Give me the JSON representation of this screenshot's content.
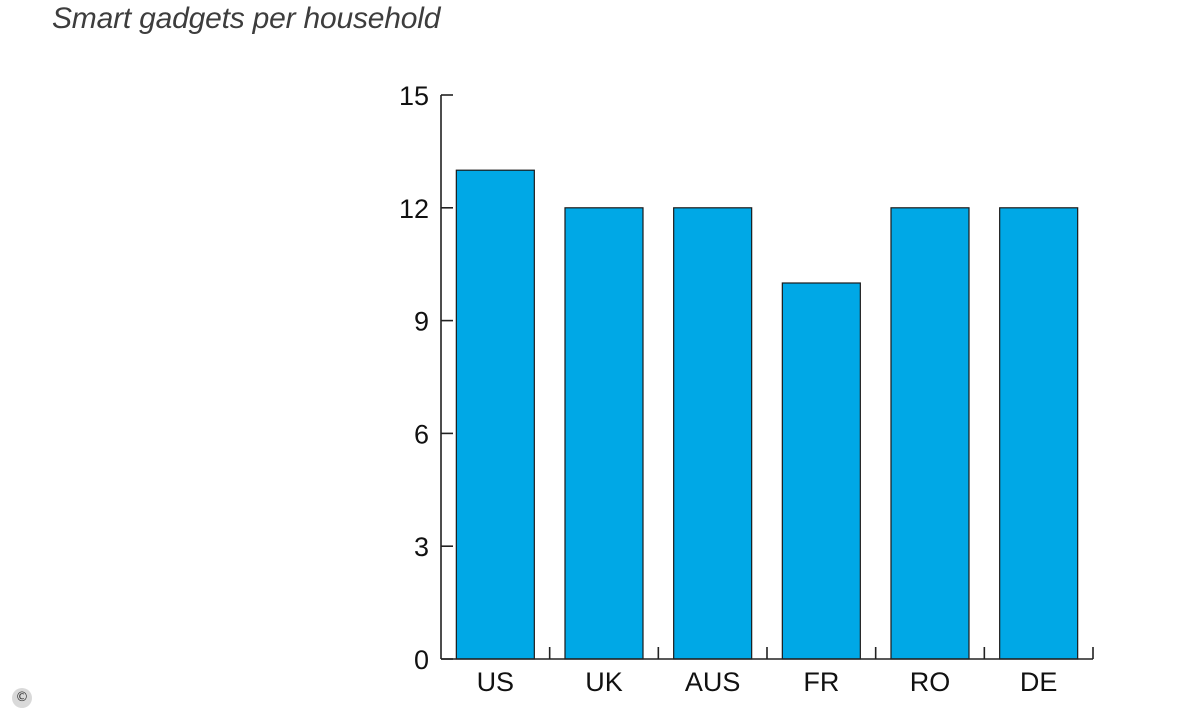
{
  "chart_data": {
    "type": "bar",
    "title": "Smart gadgets per household",
    "xlabel": "",
    "ylabel": "",
    "categories": [
      "US",
      "UK",
      "AUS",
      "FR",
      "RO",
      "DE"
    ],
    "values": [
      13,
      12,
      12,
      10,
      12,
      12
    ],
    "ylim": [
      0,
      15
    ],
    "yticks": [
      0,
      3,
      6,
      9,
      12,
      15
    ],
    "grid": false,
    "bar_color": "#00a8e6",
    "bar_edge_color": "#1a1a1a"
  },
  "footer": {
    "copyright_symbol": "©"
  }
}
